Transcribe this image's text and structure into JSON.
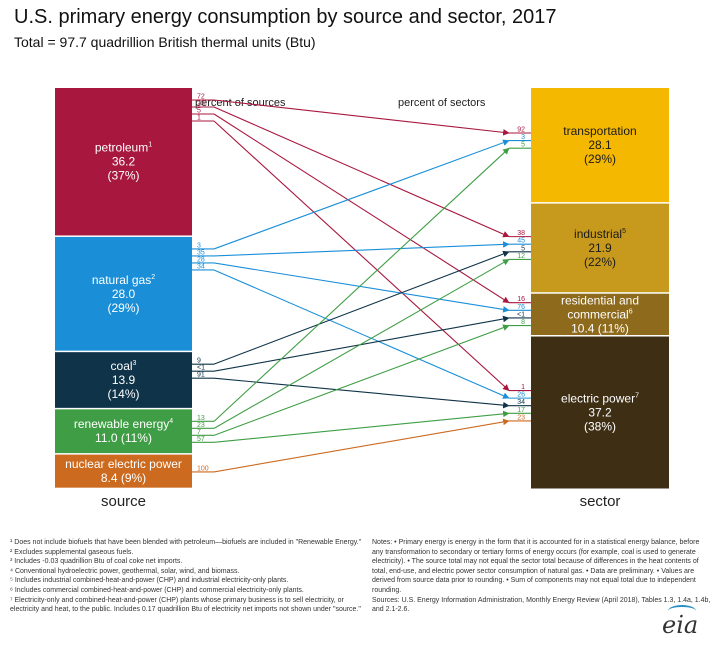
{
  "chart_data": {
    "type": "sankey",
    "title": "U.S. primary energy consumption by source and sector, 2017",
    "subtitle": "Total = 97.7 quadrillion British thermal units (Btu)",
    "header_left": "percent of sources",
    "header_right": "percent of sectors",
    "source_label": "source",
    "sector_label": "sector",
    "total": 97.7,
    "unit": "quadrillion Btu",
    "sources": [
      {
        "id": "petroleum",
        "name": "petroleum",
        "sup": "1",
        "value": 36.2,
        "value_text": "36.2",
        "pct_text": "(37%)",
        "color": "#a8173e",
        "flows": [
          {
            "to": "transportation",
            "pct": "72"
          },
          {
            "to": "industrial",
            "pct": "23"
          },
          {
            "to": "residential",
            "pct": "5"
          },
          {
            "to": "electric",
            "pct": "1"
          }
        ]
      },
      {
        "id": "natgas",
        "name": "natural gas",
        "sup": "2",
        "value": 28.0,
        "value_text": "28.0",
        "pct_text": "(29%)",
        "color": "#1a8fd8",
        "flows": [
          {
            "to": "transportation",
            "pct": "3"
          },
          {
            "to": "industrial",
            "pct": "35"
          },
          {
            "to": "residential",
            "pct": "28"
          },
          {
            "to": "electric",
            "pct": "34"
          }
        ]
      },
      {
        "id": "coal",
        "name": "coal",
        "sup": "3",
        "value": 13.9,
        "value_text": "13.9",
        "pct_text": "(14%)",
        "color": "#0f3349",
        "flows": [
          {
            "to": "industrial",
            "pct": "9"
          },
          {
            "to": "residential",
            "pct": "<1"
          },
          {
            "to": "electric",
            "pct": "91"
          }
        ]
      },
      {
        "id": "renewable",
        "name": "renewable energy",
        "sup": "4",
        "value": 11.0,
        "value_text": "11.0 (11%)",
        "pct_text": "",
        "color": "#3f9e45",
        "flows": [
          {
            "to": "transportation",
            "pct": "13"
          },
          {
            "to": "industrial",
            "pct": "23"
          },
          {
            "to": "residential",
            "pct": "7"
          },
          {
            "to": "electric",
            "pct": "57"
          }
        ]
      },
      {
        "id": "nuclear",
        "name": "nuclear electric power",
        "sup": "",
        "value": 8.4,
        "value_text": "8.4 (9%)",
        "pct_text": "",
        "color": "#cc6a20",
        "flows": [
          {
            "to": "electric",
            "pct": "100"
          }
        ]
      }
    ],
    "sectors": [
      {
        "id": "transportation",
        "name": "transportation",
        "sup": "",
        "value": 28.1,
        "value_text": "28.1",
        "pct_text": "(29%)",
        "color": "#f4b800",
        "inflows": [
          {
            "from": "petroleum",
            "pct": "92"
          },
          {
            "from": "natgas",
            "pct": "3"
          },
          {
            "from": "renewable",
            "pct": "5"
          }
        ]
      },
      {
        "id": "industrial",
        "name": "industrial",
        "sup": "5",
        "value": 21.9,
        "value_text": "21.9",
        "pct_text": "(22%)",
        "color": "#c79a1d",
        "inflows": [
          {
            "from": "petroleum",
            "pct": "38"
          },
          {
            "from": "natgas",
            "pct": "45"
          },
          {
            "from": "coal",
            "pct": "5"
          },
          {
            "from": "renewable",
            "pct": "12"
          }
        ]
      },
      {
        "id": "residential",
        "name": "residential and commercial",
        "sup": "6",
        "value": 10.4,
        "value_text": "10.4 (11%)",
        "pct_text": "",
        "color": "#8e6a1c",
        "inflows": [
          {
            "from": "petroleum",
            "pct": "16"
          },
          {
            "from": "natgas",
            "pct": "76"
          },
          {
            "from": "coal",
            "pct": "<1"
          },
          {
            "from": "renewable",
            "pct": "8"
          }
        ]
      },
      {
        "id": "electric",
        "name": "electric power",
        "sup": "7",
        "value": 37.2,
        "value_text": "37.2",
        "pct_text": "(38%)",
        "color": "#3d2e14",
        "inflows": [
          {
            "from": "petroleum",
            "pct": "1"
          },
          {
            "from": "natgas",
            "pct": "26"
          },
          {
            "from": "coal",
            "pct": "34"
          },
          {
            "from": "renewable",
            "pct": "17"
          },
          {
            "from": "nuclear",
            "pct": "23"
          }
        ]
      }
    ]
  },
  "footnotes": [
    "¹ Does not include biofuels that have been blended with petroleum—biofuels are included in \"Renewable Energy.\"",
    "² Excludes supplemental gaseous fuels.",
    "³ Includes -0.03 quadrillion Btu of coal coke net imports.",
    "⁴ Conventional hydroelectric power, geothermal, solar, wind, and biomass.",
    "⁵ Includes industrial combined-heat-and-power (CHP) and industrial electricity-only plants.",
    "⁶ Includes commercial combined-heat-and-power (CHP) and commercial electricity-only plants.",
    "⁷ Electricity-only and combined-heat-and-power (CHP) plants whose primary business is to sell electricity, or electricity and heat, to the public. Includes 0.17 quadrillion Btu of electricity net imports not shown under \"source.\""
  ],
  "notes": [
    "Notes: • Primary energy is energy in the form that it is accounted for in a statistical energy balance, before any transformation to secondary or tertiary forms of energy occurs (for example, coal is used to generate electricity). • The source total may not equal the sector total because of differences in the heat contents of total, end-use, and electric power sector consumption of natural gas. • Data are preliminary. • Values are derived from source data prior to rounding. • Sum of components may not equal total due to independent rounding.",
    "Sources: U.S. Energy Information Administration, Monthly Energy Review (April 2018), Tables 1.3, 1.4a, 1.4b, and 2.1-2.6."
  ],
  "logo_text": "eia"
}
